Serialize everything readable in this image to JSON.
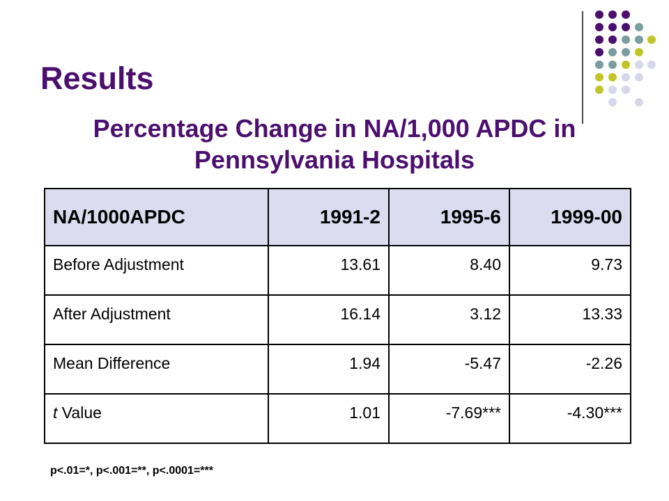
{
  "slide": {
    "title": "Results",
    "subtitle": "Percentage Change in NA/1,000 APDC in Pennsylvania Hospitals"
  },
  "table": {
    "headers": [
      "NA/1000APDC",
      "1991-2",
      "1995-6",
      "1999-00"
    ],
    "rows": [
      {
        "label": "Before Adjustment",
        "values": [
          "13.61",
          "8.40",
          "9.73"
        ]
      },
      {
        "label": "After Adjustment",
        "values": [
          "16.14",
          "3.12",
          "13.33"
        ]
      },
      {
        "label": "Mean Difference",
        "values": [
          "1.94",
          "-5.47",
          "-2.26"
        ]
      },
      {
        "label_italic": "t",
        "label": " Value",
        "values": [
          "1.01",
          "-7.69***",
          "-4.30***"
        ]
      }
    ]
  },
  "footnote": "p<.01=*, p<.001=**, p<.0001=***",
  "colors": {
    "purple": "#4b0f6e",
    "teal": "#7a9e9f",
    "olive": "#c2c528",
    "lavender": "#d7d7eb",
    "header_fill": "#dcdcf0"
  }
}
